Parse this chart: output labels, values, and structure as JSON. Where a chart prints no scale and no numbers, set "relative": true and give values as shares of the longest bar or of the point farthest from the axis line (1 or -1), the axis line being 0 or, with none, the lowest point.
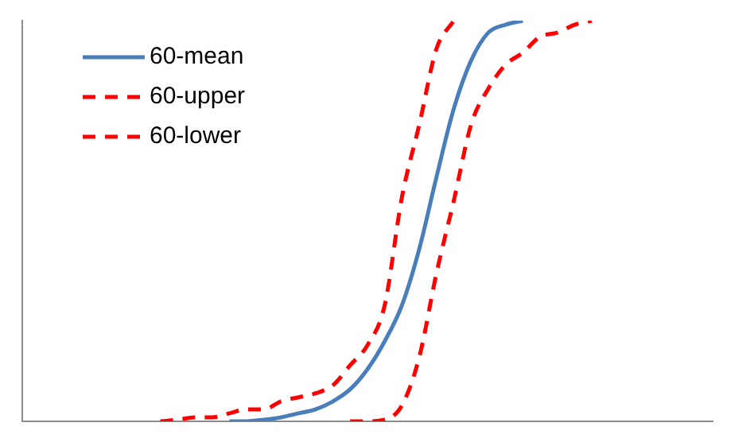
{
  "chart_data": {
    "type": "line",
    "relative": true,
    "legend": "top left",
    "marker": "none",
    "categories": [
      null,
      null,
      null,
      null,
      null,
      null,
      null,
      null,
      null,
      null,
      null,
      null,
      null,
      null,
      null,
      null,
      null,
      null,
      null,
      null,
      null,
      null,
      null,
      null,
      null,
      null,
      null,
      null,
      null,
      null,
      null,
      null,
      null,
      null,
      null,
      null,
      null,
      null,
      null,
      null,
      null
    ],
    "series": [
      {
        "name": "60-mean",
        "color": "#4a7ebb",
        "line_style": "solid",
        "values": [
          null,
          null,
          null,
          null,
          null,
          null,
          null,
          null,
          null,
          null,
          null,
          null,
          0,
          0,
          0.004,
          0.01,
          0.02,
          0.03,
          0.05,
          0.08,
          0.13,
          0.2,
          0.29,
          0.43,
          0.61,
          0.78,
          0.9,
          0.97,
          0.99,
          1,
          null,
          null,
          null,
          null,
          null,
          null,
          null,
          null,
          null,
          null,
          null
        ]
      },
      {
        "name": "60-upper",
        "color": "#ff0000",
        "line_style": "dashed",
        "values": [
          null,
          null,
          null,
          null,
          null,
          null,
          null,
          null,
          0,
          0.004,
          0.01,
          0.01,
          0.02,
          0.03,
          0.03,
          0.05,
          0.06,
          0.07,
          0.09,
          0.14,
          0.19,
          0.29,
          0.56,
          0.74,
          0.93,
          1,
          null,
          null,
          null,
          null,
          null,
          null,
          null,
          null,
          null,
          null,
          null,
          null,
          null,
          null,
          null
        ]
      },
      {
        "name": "60-lower",
        "color": "#ff0000",
        "line_style": "dashed",
        "values": [
          null,
          null,
          null,
          null,
          null,
          null,
          null,
          null,
          null,
          null,
          null,
          null,
          null,
          null,
          null,
          null,
          null,
          null,
          null,
          0,
          0,
          0.004,
          0.04,
          0.16,
          0.37,
          0.55,
          0.74,
          0.83,
          0.89,
          0.92,
          0.96,
          0.97,
          0.99,
          1,
          null,
          null,
          null,
          null,
          null,
          null,
          null
        ]
      }
    ]
  }
}
